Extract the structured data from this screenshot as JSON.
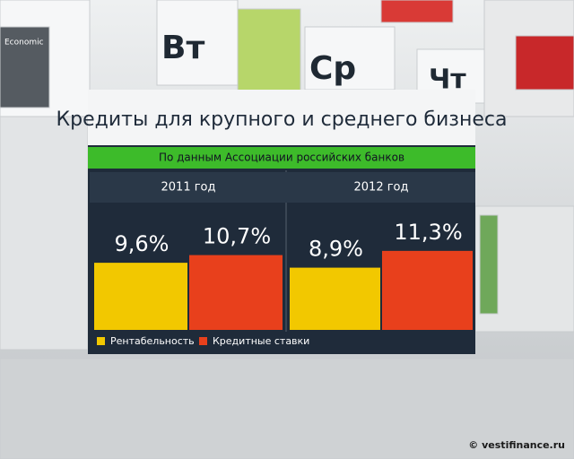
{
  "background": {
    "labels": [
      "Economic",
      "Вт",
      "Ср",
      "Чт"
    ],
    "watermark": "© vestifinance.ru"
  },
  "chart_data": {
    "type": "bar",
    "title": "Кредиты для крупного и среднего бизнеса",
    "subtitle": "По данным Ассоциации российских банков",
    "categories": [
      "2011 год",
      "2012 год"
    ],
    "series": [
      {
        "name": "Рентабельность",
        "color": "#f2c800",
        "values": [
          9.6,
          8.9
        ],
        "value_labels": [
          "9,6%",
          "8,9%"
        ]
      },
      {
        "name": "Кредитные ставки",
        "color": "#e8401c",
        "values": [
          10.7,
          11.3
        ],
        "value_labels": [
          "10,7%",
          "11,3%"
        ]
      }
    ]
  }
}
